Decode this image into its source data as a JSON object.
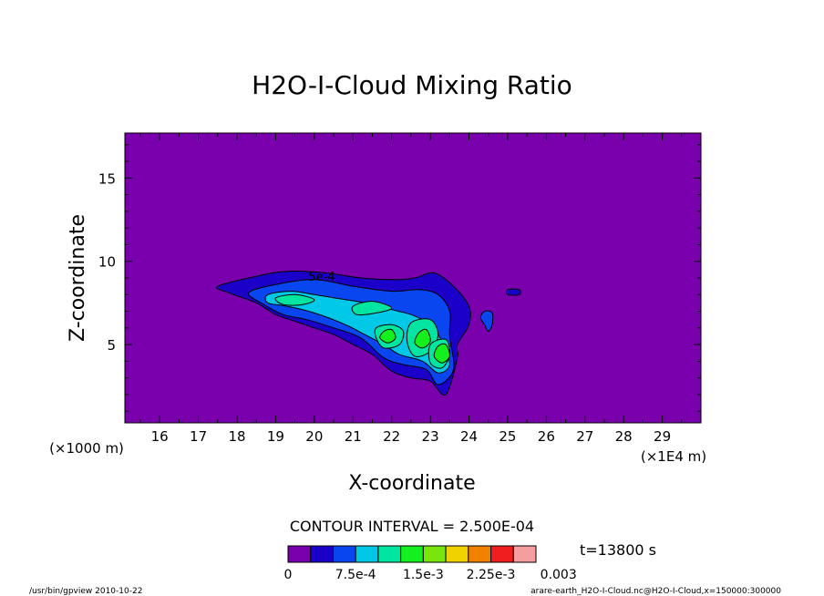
{
  "chart_data": {
    "type": "heatmap",
    "title": "H2O-I-Cloud Mixing Ratio",
    "xlabel": "X-coordinate",
    "ylabel": "Z-coordinate",
    "x_unit_label": "(×1000 m)",
    "x_scale_label": "(×1E4 m)",
    "xlim": [
      15.1,
      30.0
    ],
    "ylim": [
      0.3,
      17.7
    ],
    "x_ticks": [
      "16",
      "17",
      "18",
      "19",
      "20",
      "21",
      "22",
      "23",
      "24",
      "25",
      "26",
      "27",
      "28",
      "29"
    ],
    "x_tick_values": [
      16,
      17,
      18,
      19,
      20,
      21,
      22,
      23,
      24,
      25,
      26,
      27,
      28,
      29
    ],
    "y_ticks": [
      "5",
      "10",
      "15"
    ],
    "y_tick_values": [
      5,
      10,
      15
    ],
    "contour_interval_label": "CONTOUR INTERVAL = 2.500E-04",
    "time_label": "t=13800 s",
    "inline_contour_label": "5e-4",
    "background_color": "#7a00ae",
    "colorbar": {
      "colors": [
        "#7a00ae",
        "#1a00c8",
        "#0a46f0",
        "#00c8e6",
        "#00e6a0",
        "#14f01e",
        "#78e60a",
        "#f0d200",
        "#f08200",
        "#f01e1e",
        "#f59ea0"
      ],
      "tick_labels": [
        "0",
        "7.5e-4",
        "1.5e-3",
        "2.25e-3",
        "0.003"
      ],
      "tick_values": [
        0,
        0.00075,
        0.0015,
        0.00225,
        0.003
      ],
      "vmin": 0,
      "vmax": 0.00275
    },
    "regions": [
      {
        "level": 1,
        "color": "#1a00c8",
        "points": [
          [
            17.5,
            8.5
          ],
          [
            18.5,
            9.1
          ],
          [
            19.3,
            9.4
          ],
          [
            20.3,
            9.3
          ],
          [
            21.2,
            9.0
          ],
          [
            22.1,
            8.9
          ],
          [
            22.6,
            9.0
          ],
          [
            23.1,
            9.3
          ],
          [
            23.6,
            8.5
          ],
          [
            24.0,
            7.3
          ],
          [
            24.0,
            6.2
          ],
          [
            23.7,
            5.0
          ],
          [
            23.7,
            4.2
          ],
          [
            23.4,
            2.0
          ],
          [
            23.0,
            2.8
          ],
          [
            22.5,
            3.0
          ],
          [
            22.0,
            3.4
          ],
          [
            21.5,
            4.4
          ],
          [
            21.0,
            5.0
          ],
          [
            20.5,
            5.6
          ],
          [
            20.0,
            6.0
          ],
          [
            19.5,
            6.4
          ],
          [
            19.0,
            6.8
          ],
          [
            18.5,
            7.5
          ],
          [
            17.8,
            8.1
          ]
        ]
      },
      {
        "level": 2,
        "color": "#0a46f0",
        "points": [
          [
            18.3,
            8.1
          ],
          [
            19.0,
            8.6
          ],
          [
            20.0,
            8.9
          ],
          [
            21.0,
            8.5
          ],
          [
            22.0,
            8.2
          ],
          [
            22.7,
            8.3
          ],
          [
            23.2,
            8.0
          ],
          [
            23.5,
            7.0
          ],
          [
            23.5,
            5.5
          ],
          [
            23.6,
            3.5
          ],
          [
            23.2,
            2.6
          ],
          [
            22.9,
            3.5
          ],
          [
            22.3,
            3.8
          ],
          [
            21.8,
            4.2
          ],
          [
            21.2,
            5.4
          ],
          [
            20.5,
            6.0
          ],
          [
            19.8,
            6.5
          ],
          [
            19.2,
            6.8
          ],
          [
            18.7,
            7.4
          ]
        ]
      },
      {
        "level": 3,
        "color": "#00c8e6",
        "points": [
          [
            18.8,
            8.0
          ],
          [
            19.4,
            8.2
          ],
          [
            20.0,
            8.0
          ],
          [
            20.8,
            7.7
          ],
          [
            21.6,
            7.4
          ],
          [
            22.0,
            7.1
          ],
          [
            22.5,
            6.8
          ],
          [
            23.0,
            6.2
          ],
          [
            23.3,
            5.2
          ],
          [
            23.5,
            3.8
          ],
          [
            23.2,
            3.3
          ],
          [
            22.8,
            4.0
          ],
          [
            22.2,
            4.4
          ],
          [
            21.8,
            5.0
          ],
          [
            21.3,
            5.6
          ],
          [
            20.8,
            6.2
          ],
          [
            20.0,
            6.9
          ],
          [
            19.3,
            7.3
          ],
          [
            18.8,
            7.5
          ]
        ]
      },
      {
        "level": 4,
        "color": "#00e6a0",
        "points": [
          [
            19.0,
            7.8
          ],
          [
            19.5,
            8.0
          ],
          [
            20.0,
            7.7
          ],
          [
            19.7,
            7.4
          ],
          [
            19.2,
            7.4
          ]
        ]
      },
      {
        "level": 4,
        "color": "#00e6a0",
        "points": [
          [
            21.0,
            7.3
          ],
          [
            21.5,
            7.6
          ],
          [
            22.0,
            7.2
          ],
          [
            21.6,
            6.9
          ],
          [
            21.1,
            6.8
          ]
        ]
      },
      {
        "level": 4,
        "color": "#00e6a0",
        "points": [
          [
            21.6,
            6.0
          ],
          [
            22.0,
            6.2
          ],
          [
            22.3,
            5.8
          ],
          [
            22.2,
            5.0
          ],
          [
            21.8,
            4.8
          ],
          [
            21.6,
            5.4
          ]
        ]
      },
      {
        "level": 4,
        "color": "#00e6a0",
        "points": [
          [
            22.5,
            6.3
          ],
          [
            23.0,
            6.5
          ],
          [
            23.2,
            5.6
          ],
          [
            23.0,
            4.6
          ],
          [
            22.6,
            4.3
          ],
          [
            22.4,
            5.2
          ]
        ]
      },
      {
        "level": 4,
        "color": "#00e6a0",
        "points": [
          [
            23.0,
            5.0
          ],
          [
            23.4,
            5.3
          ],
          [
            23.5,
            4.4
          ],
          [
            23.3,
            3.6
          ],
          [
            23.0,
            3.9
          ]
        ]
      },
      {
        "level": 5,
        "color": "#14f01e",
        "points": [
          [
            22.7,
            5.7
          ],
          [
            22.9,
            5.9
          ],
          [
            23.0,
            5.2
          ],
          [
            22.8,
            4.8
          ],
          [
            22.6,
            5.1
          ]
        ]
      },
      {
        "level": 5,
        "color": "#14f01e",
        "points": [
          [
            23.2,
            4.9
          ],
          [
            23.4,
            5.0
          ],
          [
            23.5,
            4.3
          ],
          [
            23.3,
            3.9
          ],
          [
            23.1,
            4.3
          ]
        ]
      },
      {
        "level": 5,
        "color": "#14f01e",
        "points": [
          [
            21.8,
            5.8
          ],
          [
            22.0,
            5.9
          ],
          [
            22.1,
            5.4
          ],
          [
            21.9,
            5.1
          ],
          [
            21.7,
            5.4
          ]
        ]
      },
      {
        "level": 2,
        "color": "#0a46f0",
        "points": [
          [
            24.4,
            7.0
          ],
          [
            24.6,
            6.9
          ],
          [
            24.6,
            6.2
          ],
          [
            24.5,
            5.8
          ],
          [
            24.4,
            6.2
          ],
          [
            24.3,
            6.6
          ]
        ]
      },
      {
        "level": 1,
        "color": "#1a00c8",
        "points": [
          [
            25.0,
            8.3
          ],
          [
            25.3,
            8.3
          ],
          [
            25.3,
            8.0
          ],
          [
            25.0,
            8.0
          ]
        ]
      }
    ]
  },
  "footer": {
    "left": "/usr/bin/gpview  2010-10-22",
    "right": "arare-earth_H2O-I-Cloud.nc@H2O-I-Cloud,x=150000:300000"
  }
}
